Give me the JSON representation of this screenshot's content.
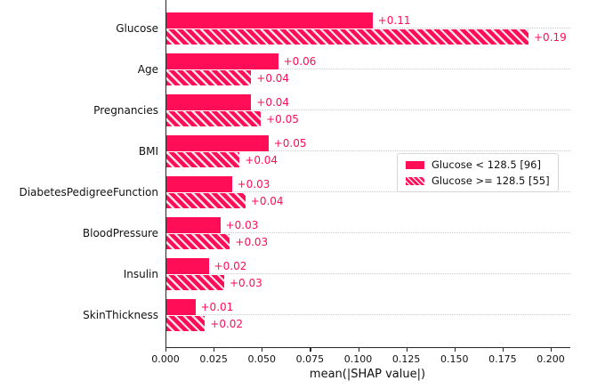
{
  "figure": {
    "background": "#ffffff",
    "accent_color": "#ff0d57",
    "grid_color": "#cccccc",
    "axis_color": "#262626"
  },
  "chart_data": {
    "type": "bar",
    "orientation": "horizontal",
    "title": "",
    "xlabel": "mean(|SHAP value|)",
    "ylabel": "",
    "xlim": [
      0,
      0.21
    ],
    "x_tick_step": 0.025,
    "x_ticks": [
      "0.000",
      "0.025",
      "0.050",
      "0.075",
      "0.100",
      "0.125",
      "0.150",
      "0.175",
      "0.200"
    ],
    "grid": "dotted horizontal line at each category",
    "legend_position": "middle-right",
    "categories": [
      "Glucose",
      "Age",
      "Pregnancies",
      "BMI",
      "DiabetesPedigreeFunction",
      "BloodPressure",
      "Insulin",
      "SkinThickness"
    ],
    "series": [
      {
        "name": "Glucose < 128.5 [96]",
        "pattern": "solid",
        "color": "#ff0d57",
        "values": [
          0.107,
          0.058,
          0.044,
          0.053,
          0.034,
          0.028,
          0.022,
          0.015
        ],
        "bar_labels": [
          "+0.11",
          "+0.06",
          "+0.04",
          "+0.05",
          "+0.03",
          "+0.03",
          "+0.02",
          "+0.01"
        ]
      },
      {
        "name": "Glucose >= 128.5 [55]",
        "pattern": "hatched",
        "color": "#ff0d57",
        "hatch_color": "#ffffff",
        "values": [
          0.188,
          0.044,
          0.049,
          0.038,
          0.041,
          0.033,
          0.03,
          0.02
        ],
        "bar_labels": [
          "+0.19",
          "+0.04",
          "+0.05",
          "+0.04",
          "+0.04",
          "+0.03",
          "+0.03",
          "+0.02"
        ]
      }
    ]
  }
}
